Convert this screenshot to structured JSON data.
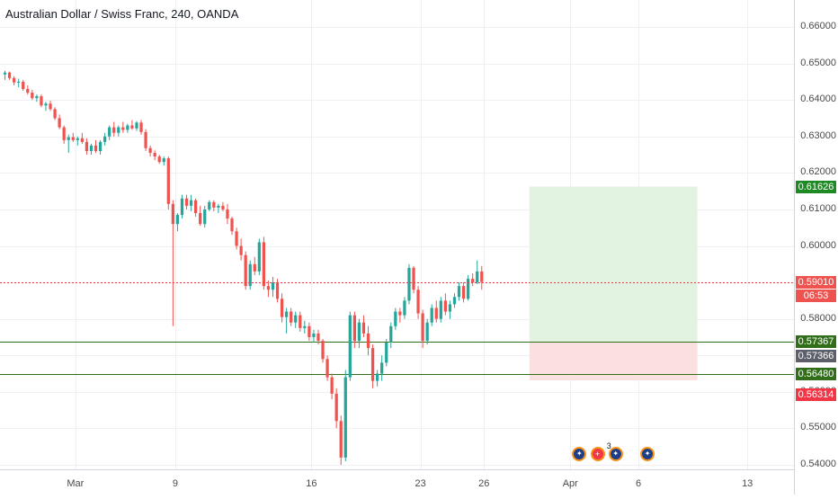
{
  "header": {
    "title": "Australian Dollar / Swiss Franc, 240, OANDA"
  },
  "colors": {
    "up": "#26a69a",
    "down": "#ef5350",
    "grid": "#eef0f3",
    "accent_green": "#1e8a24",
    "accent_red": "#f23645",
    "dark": "#5d606b",
    "line": "#316e1a",
    "profit_zone": "#e3f3e2",
    "loss_zone": "#fbe0e0"
  },
  "price_axis": {
    "ticks": [
      "0.66000",
      "0.65000",
      "0.64000",
      "0.63000",
      "0.62000",
      "0.61000",
      "0.60000",
      "0.59000",
      "0.58000",
      "0.57000",
      "0.56000",
      "0.55000",
      "0.54000"
    ],
    "range": [
      0.5395,
      0.663
    ]
  },
  "time_axis": {
    "labels": [
      {
        "text": "Mar",
        "bar": 16
      },
      {
        "text": "9",
        "bar": 38
      },
      {
        "text": "16",
        "bar": 68
      },
      {
        "text": "23",
        "bar": 92
      },
      {
        "text": "26",
        "bar": 106
      },
      {
        "text": "Apr",
        "bar": 125
      },
      {
        "text": "6",
        "bar": 140
      },
      {
        "text": "13",
        "bar": 164
      }
    ]
  },
  "price_tags": {
    "take_profit": "0.61626",
    "current": "0.59010",
    "countdown": "06:53",
    "line_upper": "0.57367",
    "entry": "0.57366",
    "line_lower": "0.56480",
    "stop_loss": "0.56314"
  },
  "horizontal_lines": [
    0.57367,
    0.5648
  ],
  "position": {
    "entry": 0.57366,
    "take_profit": 0.61626,
    "stop_loss": 0.56314,
    "from_bar": 116,
    "to_bar": 153
  },
  "events": [
    {
      "icon": "australia-flag-icon",
      "bar": 127
    },
    {
      "icon": "swiss-flag-icon",
      "bar": 131
    },
    {
      "icon": "australia-flag-icon",
      "bar": 135,
      "count": "3"
    },
    {
      "icon": "australia-flag-icon",
      "bar": 142
    }
  ],
  "chart_data": {
    "type": "candlestick",
    "title": "Australian Dollar / Swiss Franc, 240, OANDA",
    "interval": "240",
    "ylim": [
      0.5395,
      0.663
    ],
    "candles": [
      [
        0.647,
        0.648,
        0.6455,
        0.6475
      ],
      [
        0.6475,
        0.6478,
        0.6455,
        0.646
      ],
      [
        0.646,
        0.6465,
        0.644,
        0.6448
      ],
      [
        0.6448,
        0.6458,
        0.6435,
        0.645
      ],
      [
        0.645,
        0.6455,
        0.6425,
        0.643
      ],
      [
        0.643,
        0.644,
        0.6415,
        0.642
      ],
      [
        0.642,
        0.6428,
        0.64,
        0.6405
      ],
      [
        0.6405,
        0.6415,
        0.6395,
        0.641
      ],
      [
        0.641,
        0.6415,
        0.638,
        0.6385
      ],
      [
        0.6385,
        0.6395,
        0.637,
        0.639
      ],
      [
        0.639,
        0.6398,
        0.637,
        0.6375
      ],
      [
        0.6375,
        0.638,
        0.6345,
        0.635
      ],
      [
        0.635,
        0.636,
        0.632,
        0.6325
      ],
      [
        0.6325,
        0.633,
        0.628,
        0.629
      ],
      [
        0.629,
        0.6305,
        0.6255,
        0.6298
      ],
      [
        0.6298,
        0.631,
        0.6285,
        0.629
      ],
      [
        0.629,
        0.63,
        0.6275,
        0.6295
      ],
      [
        0.6295,
        0.631,
        0.628,
        0.6285
      ],
      [
        0.6285,
        0.6295,
        0.625,
        0.626
      ],
      [
        0.626,
        0.628,
        0.625,
        0.6275
      ],
      [
        0.6275,
        0.629,
        0.6255,
        0.626
      ],
      [
        0.626,
        0.629,
        0.625,
        0.6285
      ],
      [
        0.6285,
        0.631,
        0.6275,
        0.63
      ],
      [
        0.63,
        0.633,
        0.629,
        0.6325
      ],
      [
        0.6325,
        0.634,
        0.63,
        0.631
      ],
      [
        0.631,
        0.633,
        0.63,
        0.6325
      ],
      [
        0.6325,
        0.634,
        0.631,
        0.6318
      ],
      [
        0.6318,
        0.6335,
        0.631,
        0.633
      ],
      [
        0.633,
        0.6345,
        0.6318,
        0.6322
      ],
      [
        0.6322,
        0.6342,
        0.6315,
        0.6338
      ],
      [
        0.6338,
        0.6345,
        0.6305,
        0.6312
      ],
      [
        0.6312,
        0.632,
        0.626,
        0.6268
      ],
      [
        0.6268,
        0.6275,
        0.6245,
        0.6255
      ],
      [
        0.6255,
        0.6262,
        0.6235,
        0.6245
      ],
      [
        0.6245,
        0.625,
        0.6225,
        0.623
      ],
      [
        0.623,
        0.6245,
        0.622,
        0.624
      ],
      [
        0.624,
        0.6245,
        0.61,
        0.6115
      ],
      [
        0.6115,
        0.6125,
        0.578,
        0.606
      ],
      [
        0.606,
        0.609,
        0.604,
        0.6085
      ],
      [
        0.6085,
        0.614,
        0.6075,
        0.613
      ],
      [
        0.613,
        0.614,
        0.61,
        0.611
      ],
      [
        0.611,
        0.614,
        0.6095,
        0.6125
      ],
      [
        0.6125,
        0.613,
        0.608,
        0.609
      ],
      [
        0.609,
        0.611,
        0.6055,
        0.606
      ],
      [
        0.606,
        0.611,
        0.605,
        0.61
      ],
      [
        0.61,
        0.6125,
        0.6095,
        0.612
      ],
      [
        0.612,
        0.6125,
        0.6095,
        0.6105
      ],
      [
        0.6105,
        0.6115,
        0.609,
        0.611
      ],
      [
        0.611,
        0.612,
        0.6095,
        0.61
      ],
      [
        0.61,
        0.6115,
        0.606,
        0.6075
      ],
      [
        0.6075,
        0.608,
        0.603,
        0.604
      ],
      [
        0.604,
        0.605,
        0.599,
        0.6
      ],
      [
        0.6,
        0.602,
        0.596,
        0.5975
      ],
      [
        0.5975,
        0.5985,
        0.588,
        0.589
      ],
      [
        0.589,
        0.596,
        0.588,
        0.595
      ],
      [
        0.595,
        0.597,
        0.592,
        0.593
      ],
      [
        0.593,
        0.602,
        0.592,
        0.601
      ],
      [
        0.601,
        0.6025,
        0.588,
        0.589
      ],
      [
        0.589,
        0.5905,
        0.586,
        0.588
      ],
      [
        0.588,
        0.5915,
        0.586,
        0.59
      ],
      [
        0.59,
        0.591,
        0.5845,
        0.5855
      ],
      [
        0.5855,
        0.587,
        0.579,
        0.5805
      ],
      [
        0.5805,
        0.583,
        0.576,
        0.582
      ],
      [
        0.582,
        0.583,
        0.578,
        0.579
      ],
      [
        0.579,
        0.582,
        0.5775,
        0.581
      ],
      [
        0.581,
        0.582,
        0.5765,
        0.5775
      ],
      [
        0.5775,
        0.5795,
        0.576,
        0.578
      ],
      [
        0.578,
        0.579,
        0.574,
        0.575
      ],
      [
        0.575,
        0.577,
        0.5735,
        0.576
      ],
      [
        0.576,
        0.577,
        0.573,
        0.574
      ],
      [
        0.574,
        0.5745,
        0.568,
        0.569
      ],
      [
        0.569,
        0.57,
        0.563,
        0.564
      ],
      [
        0.564,
        0.565,
        0.558,
        0.5595
      ],
      [
        0.5595,
        0.561,
        0.55,
        0.552
      ],
      [
        0.552,
        0.5535,
        0.54,
        0.542
      ],
      [
        0.542,
        0.566,
        0.541,
        0.564
      ],
      [
        0.564,
        0.582,
        0.563,
        0.581
      ],
      [
        0.581,
        0.582,
        0.572,
        0.574
      ],
      [
        0.574,
        0.58,
        0.572,
        0.579
      ],
      [
        0.579,
        0.581,
        0.575,
        0.576
      ],
      [
        0.576,
        0.578,
        0.57,
        0.572
      ],
      [
        0.572,
        0.573,
        0.561,
        0.563
      ],
      [
        0.563,
        0.566,
        0.5615,
        0.565
      ],
      [
        0.565,
        0.57,
        0.563,
        0.568
      ],
      [
        0.568,
        0.5745,
        0.567,
        0.5735
      ],
      [
        0.5735,
        0.579,
        0.572,
        0.578
      ],
      [
        0.578,
        0.583,
        0.577,
        0.582
      ],
      [
        0.582,
        0.583,
        0.579,
        0.581
      ],
      [
        0.581,
        0.586,
        0.58,
        0.585
      ],
      [
        0.585,
        0.595,
        0.584,
        0.594
      ],
      [
        0.594,
        0.5945,
        0.587,
        0.588
      ],
      [
        0.588,
        0.589,
        0.58,
        0.5815
      ],
      [
        0.5815,
        0.5825,
        0.572,
        0.574
      ],
      [
        0.574,
        0.58,
        0.573,
        0.579
      ],
      [
        0.579,
        0.584,
        0.578,
        0.583
      ],
      [
        0.583,
        0.585,
        0.579,
        0.58
      ],
      [
        0.58,
        0.586,
        0.579,
        0.585
      ],
      [
        0.585,
        0.587,
        0.581,
        0.582
      ],
      [
        0.582,
        0.585,
        0.58,
        0.584
      ],
      [
        0.584,
        0.587,
        0.583,
        0.586
      ],
      [
        0.586,
        0.59,
        0.585,
        0.589
      ],
      [
        0.589,
        0.59,
        0.5845,
        0.5855
      ],
      [
        0.5855,
        0.592,
        0.585,
        0.591
      ],
      [
        0.591,
        0.5925,
        0.589,
        0.59
      ],
      [
        0.59,
        0.596,
        0.5895,
        0.593
      ],
      [
        0.593,
        0.5945,
        0.588,
        0.5901
      ]
    ]
  }
}
